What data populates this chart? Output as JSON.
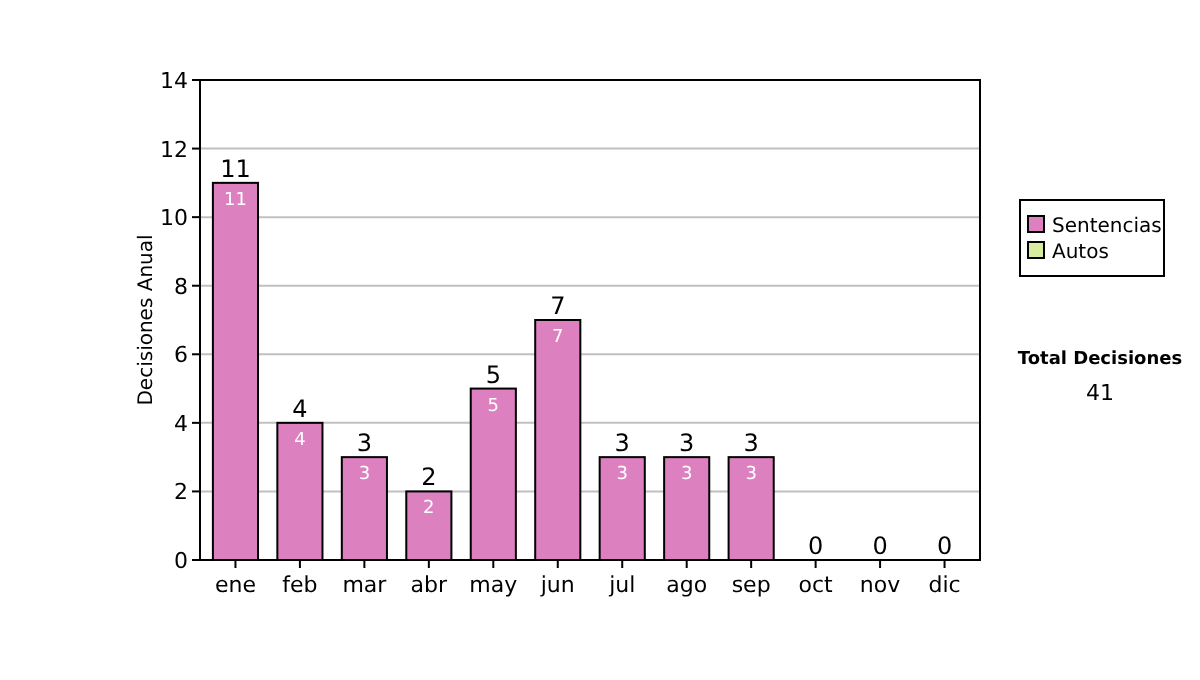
{
  "chart_data": {
    "type": "bar",
    "stacked": true,
    "ylabel": "Decisiones Anual",
    "categories": [
      "ene",
      "feb",
      "mar",
      "abr",
      "may",
      "jun",
      "jul",
      "ago",
      "sep",
      "oct",
      "nov",
      "dic"
    ],
    "series": [
      {
        "name": "Sentencias",
        "color": "#dd80c0",
        "values": [
          11,
          4,
          3,
          2,
          5,
          7,
          3,
          3,
          3,
          0,
          0,
          0
        ],
        "value_labels": [
          "11",
          "4",
          "3",
          "2",
          "5",
          "7",
          "3",
          "3",
          "3",
          null,
          null,
          null
        ]
      },
      {
        "name": "Autos",
        "color": "#d8eca0",
        "values": [
          0,
          0,
          0,
          0,
          0,
          0,
          0,
          0,
          0,
          0,
          0,
          0
        ]
      }
    ],
    "totals": [
      "11",
      "4",
      "3",
      "2",
      "5",
      "7",
      "3",
      "3",
      "3",
      "0",
      "0",
      "0"
    ],
    "ylim": [
      0,
      14
    ],
    "yticks": [
      0,
      2,
      4,
      6,
      8,
      10,
      12,
      14
    ],
    "grid": "y",
    "legend": "right",
    "annotations": [
      "Total Decisiones",
      "41"
    ]
  }
}
